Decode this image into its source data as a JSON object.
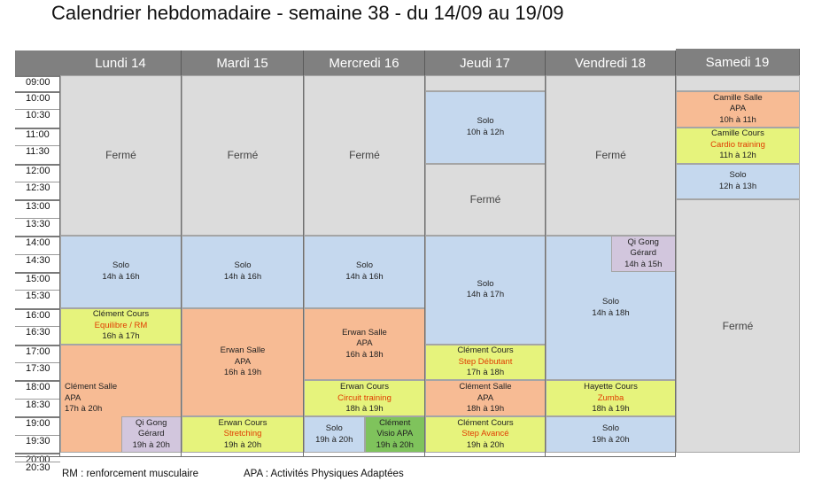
{
  "title": "Calendrier hebdomadaire - semaine 38 - du 14/09 au 19/09",
  "days": [
    "Lundi 14",
    "Mardi 15",
    "Mercredi 16",
    "Jeudi 17",
    "Vendredi 18",
    "Samedi 19"
  ],
  "times": [
    "09:00",
    "10:00",
    "10:30",
    "11:00",
    "11:30",
    "12:00",
    "12:30",
    "13:00",
    "13:30",
    "14:00",
    "14:30",
    "15:00",
    "15:30",
    "16:00",
    "16:30",
    "17:00",
    "17:30",
    "18:00",
    "18:30",
    "19:00",
    "19:30",
    "20:00",
    "20:30"
  ],
  "colors": {
    "closed": "#dcdcdc",
    "solo": "#c5d8ee",
    "salle": "#f7bb94",
    "cours": "#e6f37c",
    "qigong": "#d2c6dd",
    "visio": "#7fc35c",
    "header": "#808080"
  },
  "events": [
    {
      "day": 0,
      "start": "09:00",
      "end": "14:00",
      "kind": "closed",
      "lines": [
        "Fermé"
      ],
      "act": null
    },
    {
      "day": 0,
      "start": "14:00",
      "end": "16:00",
      "kind": "solo",
      "lines": [
        "Solo",
        "14h à 16h"
      ],
      "act": null
    },
    {
      "day": 0,
      "start": "16:00",
      "end": "17:00",
      "kind": "cours",
      "lines": [
        "Clément Cours",
        "16h à 17h"
      ],
      "act": "Equilibre / RM"
    },
    {
      "day": 0,
      "start": "17:00",
      "end": "20:00",
      "kind": "salle",
      "lines": [
        "Clément Salle",
        "APA",
        "17h à 20h"
      ],
      "act": null,
      "align": "left"
    },
    {
      "day": 0,
      "start": "19:00",
      "end": "20:00",
      "kind": "qigong",
      "lines": [
        "Qi Gong",
        "Gérard",
        "19h à 20h"
      ],
      "act": null,
      "sub": "right"
    },
    {
      "day": 1,
      "start": "09:00",
      "end": "14:00",
      "kind": "closed",
      "lines": [
        "Fermé"
      ],
      "act": null
    },
    {
      "day": 1,
      "start": "14:00",
      "end": "16:00",
      "kind": "solo",
      "lines": [
        "Solo",
        "14h à 16h"
      ],
      "act": null
    },
    {
      "day": 1,
      "start": "16:00",
      "end": "19:00",
      "kind": "salle",
      "lines": [
        "Erwan Salle",
        "APA",
        "16h à 19h"
      ],
      "act": null
    },
    {
      "day": 1,
      "start": "19:00",
      "end": "20:00",
      "kind": "cours",
      "lines": [
        "Erwan Cours",
        "19h à 20h"
      ],
      "act": "Stretching"
    },
    {
      "day": 2,
      "start": "09:00",
      "end": "14:00",
      "kind": "closed",
      "lines": [
        "Fermé"
      ],
      "act": null
    },
    {
      "day": 2,
      "start": "14:00",
      "end": "16:00",
      "kind": "solo",
      "lines": [
        "Solo",
        "14h à 16h"
      ],
      "act": null
    },
    {
      "day": 2,
      "start": "16:00",
      "end": "18:00",
      "kind": "salle",
      "lines": [
        "Erwan Salle",
        "APA",
        "16h à 18h"
      ],
      "act": null
    },
    {
      "day": 2,
      "start": "18:00",
      "end": "19:00",
      "kind": "cours",
      "lines": [
        "Erwan Cours",
        "18h à 19h"
      ],
      "act": "Circuit training"
    },
    {
      "day": 2,
      "start": "19:00",
      "end": "20:00",
      "kind": "solo",
      "lines": [
        "Solo",
        "19h à 20h"
      ],
      "act": null,
      "sub": "left-half"
    },
    {
      "day": 2,
      "start": "19:00",
      "end": "20:00",
      "kind": "visio",
      "lines": [
        "Clément",
        "Visio APA",
        "19h à 20h"
      ],
      "act": null,
      "sub": "right-half"
    },
    {
      "day": 3,
      "start": "09:00",
      "end": "10:00",
      "kind": "closed",
      "lines": [],
      "act": null
    },
    {
      "day": 3,
      "start": "10:00",
      "end": "12:00",
      "kind": "solo",
      "lines": [
        "Solo",
        "10h à 12h"
      ],
      "act": null
    },
    {
      "day": 3,
      "start": "12:00",
      "end": "14:00",
      "kind": "closed",
      "lines": [
        "Fermé"
      ],
      "act": null
    },
    {
      "day": 3,
      "start": "14:00",
      "end": "17:00",
      "kind": "solo",
      "lines": [
        "Solo",
        "14h à 17h"
      ],
      "act": null
    },
    {
      "day": 3,
      "start": "17:00",
      "end": "18:00",
      "kind": "cours",
      "lines": [
        "Clément Cours",
        "17h à 18h"
      ],
      "act": "Step Débutant"
    },
    {
      "day": 3,
      "start": "18:00",
      "end": "19:00",
      "kind": "salle",
      "lines": [
        "Clément Salle",
        "APA",
        "18h à 19h"
      ],
      "act": null
    },
    {
      "day": 3,
      "start": "19:00",
      "end": "20:00",
      "kind": "cours",
      "lines": [
        "Clément Cours",
        "19h à 20h"
      ],
      "act": "Step Avancé"
    },
    {
      "day": 4,
      "start": "09:00",
      "end": "14:00",
      "kind": "closed",
      "lines": [
        "Fermé"
      ],
      "act": null
    },
    {
      "day": 4,
      "start": "14:00",
      "end": "18:00",
      "kind": "solo",
      "lines": [
        "Solo",
        "14h à 18h"
      ],
      "act": null
    },
    {
      "day": 4,
      "start": "14:00",
      "end": "15:00",
      "kind": "qigong",
      "lines": [
        "Qi Gong",
        "Gérard",
        "14h à 15h"
      ],
      "act": null,
      "sub": "right"
    },
    {
      "day": 4,
      "start": "18:00",
      "end": "19:00",
      "kind": "cours",
      "lines": [
        "Hayette Cours",
        "18h à 19h"
      ],
      "act": "Zumba"
    },
    {
      "day": 4,
      "start": "19:00",
      "end": "20:00",
      "kind": "solo",
      "lines": [
        "Solo",
        "19h à 20h"
      ],
      "act": null
    },
    {
      "day": 5,
      "start": "09:00",
      "end": "10:00",
      "kind": "closed",
      "lines": [],
      "act": null
    },
    {
      "day": 5,
      "start": "10:00",
      "end": "11:00",
      "kind": "salle",
      "lines": [
        "Camille Salle",
        "APA",
        "10h à 11h"
      ],
      "act": null
    },
    {
      "day": 5,
      "start": "11:00",
      "end": "12:00",
      "kind": "cours",
      "lines": [
        "Camille Cours",
        "11h à 12h"
      ],
      "act": "Cardio training"
    },
    {
      "day": 5,
      "start": "12:00",
      "end": "13:00",
      "kind": "solo",
      "lines": [
        "Solo",
        "12h à 13h"
      ],
      "act": null
    },
    {
      "day": 5,
      "start": "13:00",
      "end": "20:00",
      "kind": "closed",
      "lines": [
        "Fermé"
      ],
      "act": null
    }
  ],
  "legend": [
    "RM : renforcement musculaire",
    "APA : Activités Physiques Adaptées"
  ]
}
